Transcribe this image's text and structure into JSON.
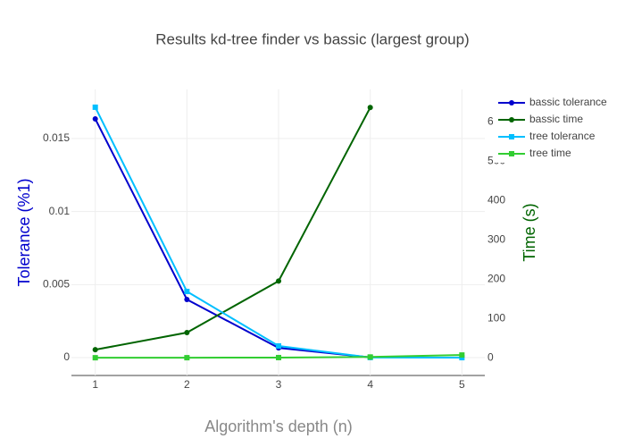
{
  "chart_data": {
    "type": "line",
    "title": "Results kd-tree finder vs bassic (largest group)",
    "x_label": "Algorithm's depth (n)",
    "y_label": "Tolerance (%1)",
    "y2_label": "Time (s)",
    "x": [
      1,
      2,
      3,
      4,
      5
    ],
    "xlim": [
      0.74,
      5.25
    ],
    "xticks": [
      1,
      2,
      3,
      4,
      5
    ],
    "ylim": [
      -0.00122,
      0.01836
    ],
    "yticks": [
      0,
      0.005,
      0.01,
      0.015
    ],
    "y2lim": [
      -45,
      682
    ],
    "y2ticks": [
      0,
      100,
      200,
      300,
      400,
      500,
      600
    ],
    "grid": true,
    "legend": "right",
    "series": [
      {
        "name": "bassic tolerance",
        "color": "#0000cd",
        "marker": "circle",
        "values": [
          0.01634,
          0.00398,
          0.00067,
          2e-05,
          null
        ]
      },
      {
        "name": "bassic time",
        "color": "#006400",
        "marker": "circle",
        "axis": "y2",
        "values": [
          20.5,
          64,
          195,
          636,
          null
        ]
      },
      {
        "name": "tree tolerance",
        "color": "#00bfff",
        "marker": "square",
        "values": [
          0.01714,
          0.00453,
          0.0008,
          1e-05,
          0
        ]
      },
      {
        "name": "tree time",
        "color": "#32cd32",
        "marker": "square",
        "axis": "y2",
        "values": [
          0.1,
          0.2,
          0.5,
          2,
          7
        ]
      }
    ]
  }
}
